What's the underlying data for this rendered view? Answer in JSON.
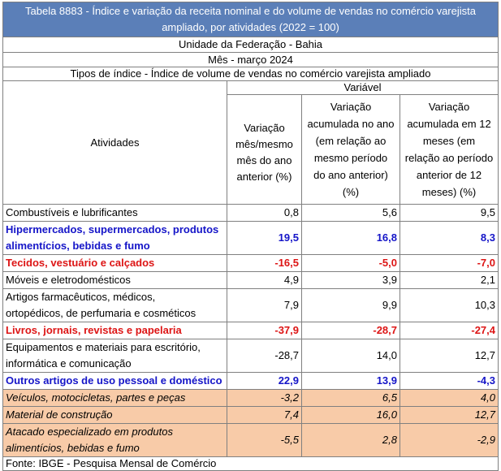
{
  "header": {
    "title_line1": "Tabela 8883 - Índice e variação da receita nominal e do volume de vendas no comércio varejista",
    "title_line2": "ampliado, por atividades (2022 = 100)",
    "uf": "Unidade da Federação - Bahia",
    "mes": "Mês - março 2024",
    "tipo": "Tipos de índice - Índice de volume de vendas no comércio varejista ampliado",
    "variavel": "Variável"
  },
  "columns": {
    "atividades": "Atividades",
    "c1": [
      "Variação",
      "mês/mesmo",
      "mês do ano",
      "anterior (%)"
    ],
    "c2": [
      "Variação",
      "acumulada no ano",
      "(em relação ao",
      "mesmo período",
      "do ano anterior)",
      "(%)"
    ],
    "c3": [
      "Variação",
      "acumulada em 12",
      "meses (em",
      "relação ao período",
      "anterior de 12",
      "meses) (%)"
    ]
  },
  "rows": [
    {
      "label": [
        "Combustíveis e lubrificantes"
      ],
      "v1": "0,8",
      "v2": "5,6",
      "v3": "9,5"
    },
    {
      "label": [
        "Hipermercados, supermercados, produtos",
        "alimentícios, bebidas e fumo"
      ],
      "v1": "19,5",
      "v2": "16,8",
      "v3": "8,3"
    },
    {
      "label": [
        "Tecidos, vestuário e calçados"
      ],
      "v1": "-16,5",
      "v2": "-5,0",
      "v3": "-7,0"
    },
    {
      "label": [
        "Móveis e eletrodomésticos"
      ],
      "v1": "4,9",
      "v2": "3,9",
      "v3": "2,1"
    },
    {
      "label": [
        "Artigos farmacêuticos, médicos,",
        "ortopédicos, de perfumaria e cosméticos"
      ],
      "v1": "7,9",
      "v2": "9,9",
      "v3": "10,3"
    },
    {
      "label": [
        "Livros, jornais, revistas e papelaria"
      ],
      "v1": "-37,9",
      "v2": "-28,7",
      "v3": "-27,4"
    },
    {
      "label": [
        "Equipamentos e materiais para escritório,",
        "informática e comunicação"
      ],
      "v1": "-28,7",
      "v2": "14,0",
      "v3": "12,7"
    },
    {
      "label": [
        "Outros artigos de uso pessoal e doméstico"
      ],
      "v1": "22,9",
      "v2": "13,9",
      "v3": "-4,3"
    },
    {
      "label": [
        "Veículos, motocicletas, partes e peças"
      ],
      "v1": "-3,2",
      "v2": "6,5",
      "v3": "4,0"
    },
    {
      "label": [
        "Material de construção"
      ],
      "v1": "7,4",
      "v2": "16,0",
      "v3": "12,7"
    },
    {
      "label": [
        "Atacado especializado em produtos",
        "alimentícios, bebidas e fumo"
      ],
      "v1": "-5,5",
      "v2": "2,8",
      "v3": "-2,9"
    }
  ],
  "footer": "Fonte: IBGE - Pesquisa Mensal de Comércio",
  "colors": {
    "title_bg": "#5b7fb8",
    "blue_text": "#1515c8",
    "red_text": "#dd1515",
    "orange_bg": "#f8cba8"
  }
}
